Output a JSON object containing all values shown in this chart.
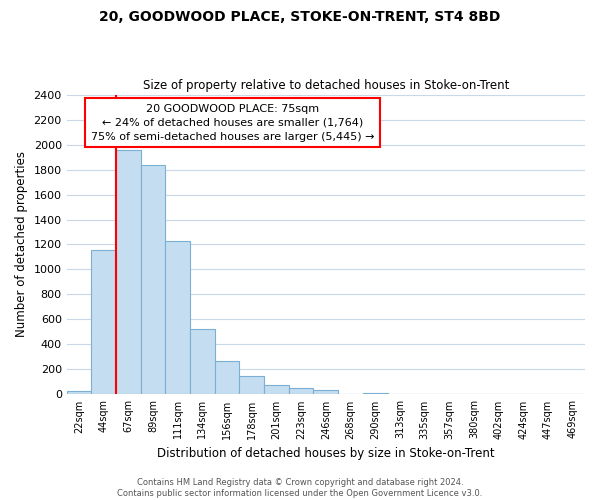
{
  "title": "20, GOODWOOD PLACE, STOKE-ON-TRENT, ST4 8BD",
  "subtitle": "Size of property relative to detached houses in Stoke-on-Trent",
  "xlabel": "Distribution of detached houses by size in Stoke-on-Trent",
  "ylabel": "Number of detached properties",
  "bar_labels": [
    "22sqm",
    "44sqm",
    "67sqm",
    "89sqm",
    "111sqm",
    "134sqm",
    "156sqm",
    "178sqm",
    "201sqm",
    "223sqm",
    "246sqm",
    "268sqm",
    "290sqm",
    "313sqm",
    "335sqm",
    "357sqm",
    "380sqm",
    "402sqm",
    "424sqm",
    "447sqm",
    "469sqm"
  ],
  "bar_values": [
    25,
    1155,
    1960,
    1840,
    1225,
    520,
    265,
    148,
    78,
    50,
    38,
    0,
    15,
    0,
    0,
    0,
    0,
    0,
    0,
    0,
    0
  ],
  "bar_color": "#c5ddf0",
  "bar_edge_color": "#7bafd4",
  "annotation_title": "20 GOODWOOD PLACE: 75sqm",
  "annotation_line1": "← 24% of detached houses are smaller (1,764)",
  "annotation_line2": "75% of semi-detached houses are larger (5,445) →",
  "marker_bar_index": 2,
  "ylim": [
    0,
    2400
  ],
  "yticks": [
    0,
    200,
    400,
    600,
    800,
    1000,
    1200,
    1400,
    1600,
    1800,
    2000,
    2200,
    2400
  ],
  "footer_line1": "Contains HM Land Registry data © Crown copyright and database right 2024.",
  "footer_line2": "Contains public sector information licensed under the Open Government Licence v3.0.",
  "background_color": "#ffffff",
  "grid_color": "#c8d8e8"
}
